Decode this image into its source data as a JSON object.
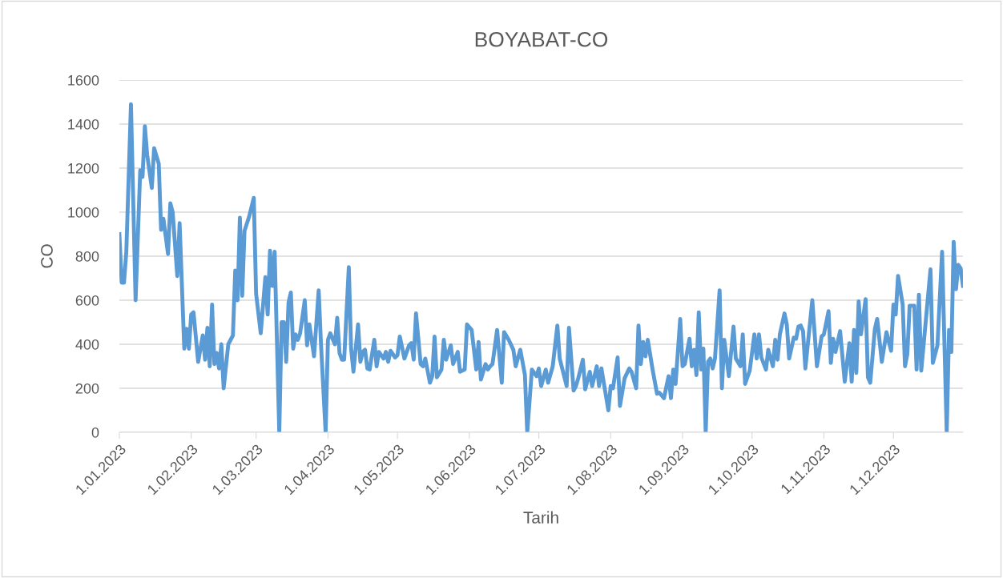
{
  "chart_data": {
    "type": "line",
    "title": "BOYABAT-CO",
    "xlabel": "Tarih",
    "ylabel": "CO",
    "x": [
      "2023-01-01",
      "2023-01-02",
      "2023-01-03",
      "2023-01-04",
      "2023-01-06",
      "2023-01-08",
      "2023-01-10",
      "2023-01-11",
      "2023-01-12",
      "2023-01-13",
      "2023-01-15",
      "2023-01-16",
      "2023-01-18",
      "2023-01-19",
      "2023-01-20",
      "2023-01-22",
      "2023-01-23",
      "2023-01-24",
      "2023-01-26",
      "2023-01-27",
      "2023-01-29",
      "2023-01-30",
      "2023-01-31",
      "2023-02-01",
      "2023-02-02",
      "2023-02-04",
      "2023-02-06",
      "2023-02-07",
      "2023-02-08",
      "2023-02-09",
      "2023-02-10",
      "2023-02-11",
      "2023-02-12",
      "2023-02-13",
      "2023-02-14",
      "2023-02-15",
      "2023-02-17",
      "2023-02-19",
      "2023-02-20",
      "2023-02-21",
      "2023-02-22",
      "2023-02-23",
      "2023-02-24",
      "2023-02-26",
      "2023-02-28",
      "2023-03-01",
      "2023-03-03",
      "2023-03-05",
      "2023-03-06",
      "2023-03-07",
      "2023-03-08",
      "2023-03-09",
      "2023-03-11",
      "2023-03-12",
      "2023-03-13",
      "2023-03-14",
      "2023-03-15",
      "2023-03-16",
      "2023-03-17",
      "2023-03-18",
      "2023-03-19",
      "2023-03-20",
      "2023-03-22",
      "2023-03-23",
      "2023-03-24",
      "2023-03-26",
      "2023-03-28",
      "2023-03-29",
      "2023-03-31",
      "2023-04-01",
      "2023-04-02",
      "2023-04-04",
      "2023-04-05",
      "2023-04-06",
      "2023-04-07",
      "2023-04-08",
      "2023-04-10",
      "2023-04-11",
      "2023-04-12",
      "2023-04-14",
      "2023-04-15",
      "2023-04-16",
      "2023-04-17",
      "2023-04-18",
      "2023-04-19",
      "2023-04-21",
      "2023-04-22",
      "2023-04-23",
      "2023-04-25",
      "2023-04-26",
      "2023-04-27",
      "2023-04-28",
      "2023-04-30",
      "2023-05-01",
      "2023-05-02",
      "2023-05-04",
      "2023-05-06",
      "2023-05-07",
      "2023-05-08",
      "2023-05-09",
      "2023-05-11",
      "2023-05-12",
      "2023-05-13",
      "2023-05-15",
      "2023-05-16",
      "2023-05-17",
      "2023-05-18",
      "2023-05-20",
      "2023-05-21",
      "2023-05-22",
      "2023-05-24",
      "2023-05-25",
      "2023-05-27",
      "2023-05-28",
      "2023-05-30",
      "2023-05-31",
      "2023-06-02",
      "2023-06-04",
      "2023-06-05",
      "2023-06-06",
      "2023-06-08",
      "2023-06-09",
      "2023-06-10",
      "2023-06-11",
      "2023-06-13",
      "2023-06-15",
      "2023-06-16",
      "2023-06-18",
      "2023-06-20",
      "2023-06-21",
      "2023-06-23",
      "2023-06-25",
      "2023-06-26",
      "2023-06-28",
      "2023-06-30",
      "2023-07-01",
      "2023-07-02",
      "2023-07-04",
      "2023-07-05",
      "2023-07-07",
      "2023-07-09",
      "2023-07-10",
      "2023-07-13",
      "2023-07-14",
      "2023-07-16",
      "2023-07-17",
      "2023-07-18",
      "2023-07-20",
      "2023-07-21",
      "2023-07-23",
      "2023-07-24",
      "2023-07-26",
      "2023-07-27",
      "2023-07-28",
      "2023-07-31",
      "2023-08-01",
      "2023-08-02",
      "2023-08-04",
      "2023-08-05",
      "2023-08-07",
      "2023-08-09",
      "2023-08-10",
      "2023-08-12",
      "2023-08-13",
      "2023-08-14",
      "2023-08-15",
      "2023-08-16",
      "2023-08-17",
      "2023-08-19",
      "2023-08-21",
      "2023-08-22",
      "2023-08-24",
      "2023-08-26",
      "2023-08-27",
      "2023-08-28",
      "2023-08-29",
      "2023-08-31",
      "2023-09-01",
      "2023-09-02",
      "2023-09-04",
      "2023-09-05",
      "2023-09-06",
      "2023-09-07",
      "2023-09-08",
      "2023-09-09",
      "2023-09-10",
      "2023-09-11",
      "2023-09-12",
      "2023-09-13",
      "2023-09-14",
      "2023-09-15",
      "2023-09-17",
      "2023-09-18",
      "2023-09-19",
      "2023-09-21",
      "2023-09-23",
      "2023-09-24",
      "2023-09-26",
      "2023-09-27",
      "2023-09-28",
      "2023-09-30",
      "2023-10-02",
      "2023-10-03",
      "2023-10-04",
      "2023-10-05",
      "2023-10-07",
      "2023-10-08",
      "2023-10-10",
      "2023-10-11",
      "2023-10-12",
      "2023-10-13",
      "2023-10-15",
      "2023-10-16",
      "2023-10-17",
      "2023-10-19",
      "2023-10-20",
      "2023-10-21",
      "2023-10-22",
      "2023-10-23",
      "2023-10-24",
      "2023-10-27",
      "2023-10-29",
      "2023-10-31",
      "2023-11-01",
      "2023-11-03",
      "2023-11-04",
      "2023-11-05",
      "2023-11-06",
      "2023-11-08",
      "2023-11-10",
      "2023-11-12",
      "2023-11-13",
      "2023-11-14",
      "2023-11-15",
      "2023-11-16",
      "2023-11-17",
      "2023-11-19",
      "2023-11-20",
      "2023-11-21",
      "2023-11-23",
      "2023-11-24",
      "2023-11-26",
      "2023-11-28",
      "2023-11-30",
      "2023-12-01",
      "2023-12-02",
      "2023-12-03",
      "2023-12-05",
      "2023-12-06",
      "2023-12-07",
      "2023-12-08",
      "2023-12-10",
      "2023-12-11",
      "2023-12-12",
      "2023-12-13",
      "2023-12-17",
      "2023-12-18",
      "2023-12-20",
      "2023-12-22",
      "2023-12-24",
      "2023-12-25",
      "2023-12-26",
      "2023-12-27",
      "2023-12-28",
      "2023-12-29",
      "2023-12-30",
      "2023-12-31"
    ],
    "series": [
      {
        "color": "#5b9bd5",
        "values": [
          900,
          680,
          680,
          820,
          1490,
          600,
          1190,
          1160,
          1390,
          1260,
          1110,
          1290,
          1220,
          920,
          970,
          810,
          1040,
          1000,
          710,
          950,
          380,
          470,
          380,
          535,
          545,
          320,
          440,
          330,
          475,
          300,
          580,
          310,
          360,
          290,
          400,
          200,
          400,
          440,
          735,
          600,
          975,
          620,
          915,
          980,
          1065,
          630,
          450,
          705,
          535,
          825,
          665,
          820,
          0,
          500,
          500,
          320,
          590,
          635,
          380,
          445,
          420,
          450,
          600,
          395,
          490,
          345,
          645,
          400,
          0,
          420,
          450,
          400,
          520,
          360,
          330,
          330,
          750,
          380,
          275,
          490,
          320,
          365,
          375,
          290,
          285,
          420,
          300,
          365,
          335,
          365,
          320,
          370,
          340,
          350,
          435,
          335,
          395,
          405,
          330,
          540,
          310,
          300,
          335,
          225,
          255,
          435,
          250,
          285,
          420,
          330,
          395,
          310,
          365,
          275,
          285,
          490,
          465,
          285,
          410,
          240,
          310,
          285,
          300,
          310,
          465,
          225,
          455,
          420,
          375,
          300,
          375,
          260,
          0,
          285,
          255,
          290,
          210,
          285,
          225,
          300,
          485,
          335,
          210,
          475,
          190,
          210,
          245,
          330,
          195,
          275,
          210,
          300,
          210,
          290,
          100,
          210,
          200,
          340,
          120,
          245,
          290,
          275,
          200,
          485,
          310,
          410,
          345,
          420,
          290,
          175,
          180,
          155,
          255,
          155,
          285,
          220,
          515,
          300,
          310,
          425,
          300,
          375,
          260,
          545,
          285,
          380,
          0,
          320,
          335,
          290,
          335,
          645,
          200,
          420,
          255,
          480,
          335,
          300,
          445,
          220,
          280,
          445,
          335,
          445,
          340,
          285,
          375,
          300,
          420,
          330,
          445,
          540,
          490,
          335,
          430,
          425,
          480,
          485,
          460,
          290,
          600,
          300,
          435,
          445,
          550,
          315,
          425,
          365,
          460,
          230,
          405,
          230,
          465,
          270,
          595,
          445,
          605,
          250,
          225,
          470,
          515,
          320,
          455,
          370,
          580,
          535,
          710,
          580,
          300,
          355,
          575,
          575,
          285,
          625,
          280,
          740,
          315,
          395,
          820,
          0,
          465,
          365,
          865,
          650,
          760,
          745,
          665
        ]
      }
    ],
    "xlim": [
      "2023-01-01",
      "2023-12-31"
    ],
    "xticks": [
      {
        "value": "2023-01-01",
        "label": "1.01.2023"
      },
      {
        "value": "2023-02-01",
        "label": "1.02.2023"
      },
      {
        "value": "2023-03-01",
        "label": "1.03.2023"
      },
      {
        "value": "2023-04-01",
        "label": "1.04.2023"
      },
      {
        "value": "2023-05-01",
        "label": "1.05.2023"
      },
      {
        "value": "2023-06-01",
        "label": "1.06.2023"
      },
      {
        "value": "2023-07-01",
        "label": "1.07.2023"
      },
      {
        "value": "2023-08-01",
        "label": "1.08.2023"
      },
      {
        "value": "2023-09-01",
        "label": "1.09.2023"
      },
      {
        "value": "2023-10-01",
        "label": "1.10.2023"
      },
      {
        "value": "2023-11-01",
        "label": "1.11.2023"
      },
      {
        "value": "2023-12-01",
        "label": "1.12.2023"
      }
    ],
    "ylim": [
      0,
      1600
    ],
    "yticks": [
      0,
      200,
      400,
      600,
      800,
      1000,
      1200,
      1400,
      1600
    ],
    "grid": "y",
    "marker": "none",
    "line_style": "solid"
  }
}
